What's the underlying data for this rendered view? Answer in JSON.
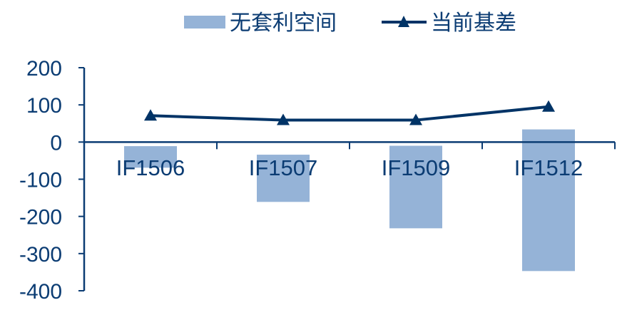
{
  "chart_data": {
    "type": "bar",
    "title": "",
    "xlabel": "",
    "ylabel": "",
    "categories": [
      "IF1506",
      "IF1507",
      "IF1509",
      "IF1512"
    ],
    "ylim": [
      -400,
      200
    ],
    "yticks": [
      200,
      100,
      0,
      -100,
      -200,
      -300,
      -400
    ],
    "grid": false,
    "legend_position": "top",
    "series": [
      {
        "name": "无套利空间",
        "type": "floating-bar",
        "color": "#95b3d7",
        "upper": [
          -11,
          -34,
          -10,
          34
        ],
        "lower": [
          -69,
          -161,
          -232,
          -347
        ]
      },
      {
        "name": "当前基差",
        "type": "line",
        "marker": "triangle",
        "color": "#003366",
        "values": [
          71,
          59,
          59,
          95
        ]
      }
    ]
  }
}
